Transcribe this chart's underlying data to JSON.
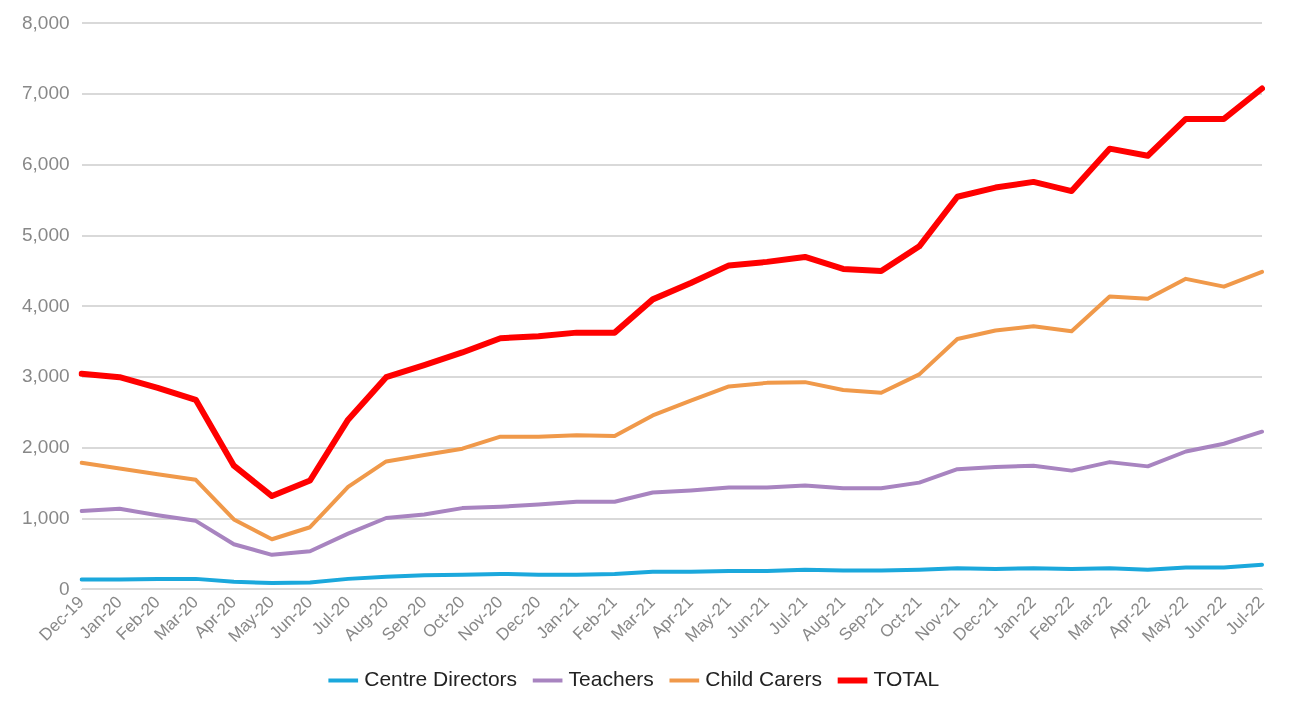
{
  "chart_data": {
    "type": "line",
    "categories": [
      "Dec-19",
      "Jan-20",
      "Feb-20",
      "Mar-20",
      "Apr-20",
      "May-20",
      "Jun-20",
      "Jul-20",
      "Aug-20",
      "Sep-20",
      "Oct-20",
      "Nov-20",
      "Dec-20",
      "Jan-21",
      "Feb-21",
      "Mar-21",
      "Apr-21",
      "May-21",
      "Jun-21",
      "Jul-21",
      "Aug-21",
      "Sep-21",
      "Oct-21",
      "Nov-21",
      "Dec-21",
      "Jan-22",
      "Feb-22",
      "Mar-22",
      "Apr-22",
      "May-22",
      "Jun-22",
      "Jul-22"
    ],
    "series": [
      {
        "name": "Centre Directors",
        "color": "#1ba8dc",
        "values": [
          140,
          140,
          150,
          150,
          110,
          90,
          100,
          150,
          180,
          200,
          210,
          220,
          210,
          210,
          220,
          250,
          250,
          260,
          260,
          280,
          270,
          270,
          280,
          300,
          290,
          300,
          290,
          300,
          280,
          310,
          310,
          350
        ]
      },
      {
        "name": "Teachers",
        "color": "#a884c0",
        "values": [
          1110,
          1140,
          1050,
          970,
          640,
          490,
          540,
          790,
          1010,
          1060,
          1150,
          1170,
          1200,
          1240,
          1240,
          1370,
          1400,
          1440,
          1440,
          1470,
          1430,
          1430,
          1510,
          1700,
          1730,
          1750,
          1680,
          1800,
          1740,
          1950,
          2060,
          2230
        ]
      },
      {
        "name": "Child Carers",
        "color": "#f0994a",
        "values": [
          1790,
          1710,
          1630,
          1550,
          990,
          710,
          880,
          1450,
          1810,
          1900,
          1990,
          2160,
          2160,
          2180,
          2170,
          2460,
          2670,
          2870,
          2920,
          2930,
          2820,
          2780,
          3040,
          3540,
          3660,
          3720,
          3650,
          4140,
          4110,
          4390,
          4280,
          4490
        ]
      },
      {
        "name": "TOTAL",
        "color": "#ff0000",
        "values": [
          3050,
          3000,
          2850,
          2680,
          1750,
          1320,
          1540,
          2400,
          3000,
          3170,
          3350,
          3550,
          3580,
          3630,
          3630,
          4100,
          4330,
          4580,
          4630,
          4700,
          4530,
          4500,
          4850,
          5550,
          5680,
          5760,
          5630,
          6230,
          6130,
          6650,
          6650,
          7080
        ]
      }
    ],
    "ylim": [
      0,
      8000
    ],
    "yticks": [
      0,
      {
        "value": 1000,
        "label": "1,000"
      },
      {
        "value": 2000,
        "label": "2,000"
      },
      {
        "value": 3000,
        "label": "3,000"
      },
      {
        "value": 4000,
        "label": "4,000"
      },
      {
        "value": 5000,
        "label": "5,000"
      },
      {
        "value": 6000,
        "label": "6,000"
      },
      {
        "value": 7000,
        "label": "7,000"
      },
      {
        "value": 8000,
        "label": "8,000"
      }
    ],
    "grid": "y",
    "legend": "bottom",
    "marker": "none",
    "line_style": "solid"
  }
}
